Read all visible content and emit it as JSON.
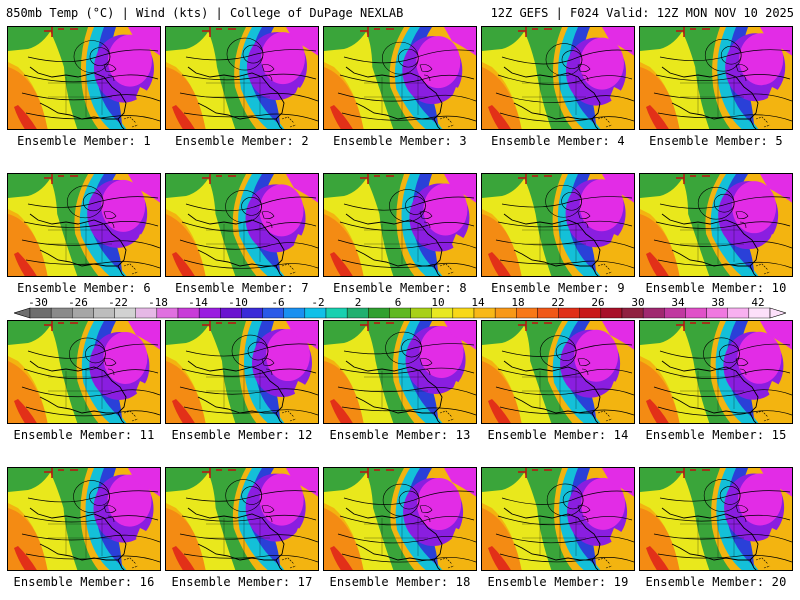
{
  "header": {
    "left": "850mb Temp (°C) | Wind (kts) | College of DuPage NEXLAB",
    "right": "12Z GEFS | F024 Valid: 12Z MON NOV 10 2025"
  },
  "members": [
    "Ensemble Member: 1",
    "Ensemble Member: 2",
    "Ensemble Member: 3",
    "Ensemble Member: 4",
    "Ensemble Member: 5",
    "Ensemble Member: 6",
    "Ensemble Member: 7",
    "Ensemble Member: 8",
    "Ensemble Member: 9",
    "Ensemble Member: 10",
    "Ensemble Member: 11",
    "Ensemble Member: 12",
    "Ensemble Member: 13",
    "Ensemble Member: 14",
    "Ensemble Member: 15",
    "Ensemble Member: 16",
    "Ensemble Member: 17",
    "Ensemble Member: 18",
    "Ensemble Member: 19",
    "Ensemble Member: 20"
  ],
  "colorbar": {
    "tick_labels": [
      "-30",
      "-26",
      "-22",
      "-18",
      "-14",
      "-10",
      "-6",
      "-2",
      "2",
      "6",
      "10",
      "14",
      "18",
      "22",
      "26",
      "30",
      "34",
      "38",
      "42"
    ],
    "colors": [
      "#6e6e6e",
      "#8a8a8a",
      "#a6a6a6",
      "#bdbdbd",
      "#d2d2d2",
      "#e6b8e6",
      "#e070e0",
      "#c83cd8",
      "#9a1ee0",
      "#6a14d0",
      "#3a2ad8",
      "#2a5ae8",
      "#1a90f0",
      "#10c0e8",
      "#18d0b0",
      "#20b070",
      "#30a030",
      "#60b820",
      "#a8d018",
      "#e8e820",
      "#f8d818",
      "#f8b818",
      "#f89818",
      "#f87818",
      "#f05818",
      "#e03018",
      "#c81818",
      "#a81028",
      "#902040",
      "#a02870",
      "#c038a0",
      "#e050c8",
      "#f078e0",
      "#f8b0f0",
      "#fde0fa"
    ]
  },
  "map_colors": {
    "warm": "#f3b410",
    "orange": "#f47d14",
    "yellow": "#e9e81c",
    "green": "#3aa53a",
    "cyan": "#14c0d8",
    "blue": "#2a40d8",
    "purple": "#8a1ee0",
    "magenta": "#e22ce6",
    "red": "#e23018"
  }
}
